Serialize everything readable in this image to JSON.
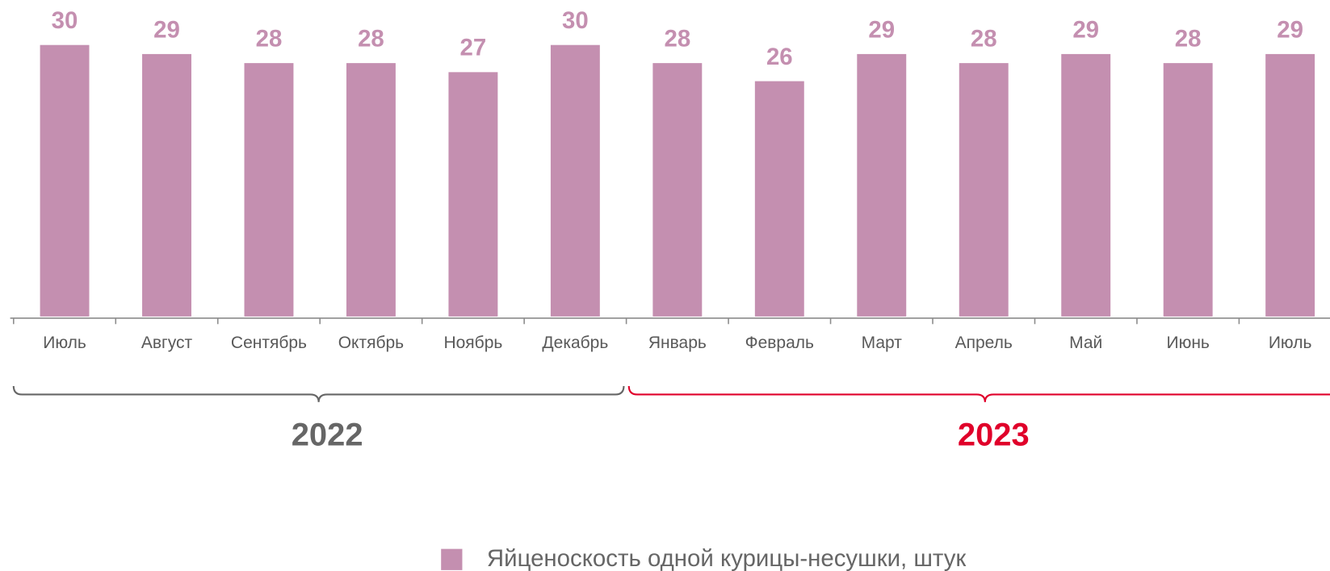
{
  "chart_data": {
    "type": "bar",
    "categories": [
      "Июль",
      "Август",
      "Сентябрь",
      "Октябрь",
      "Ноябрь",
      "Декабрь",
      "Январь",
      "Февраль",
      "Март",
      "Апрель",
      "Май",
      "Июнь",
      "Июль"
    ],
    "series": [
      {
        "name": "Яйценоскость одной курицы-несушки, штук",
        "color": "#c48fb0",
        "values": [
          30,
          29,
          28,
          28,
          27,
          30,
          28,
          26,
          29,
          28,
          29,
          28,
          29
        ]
      }
    ],
    "ylim": [
      0,
      30
    ],
    "groups": [
      {
        "label": "2022",
        "count": 6,
        "color": "#666666"
      },
      {
        "label": "2023",
        "count": 7,
        "color": "#e0002a"
      }
    ]
  }
}
